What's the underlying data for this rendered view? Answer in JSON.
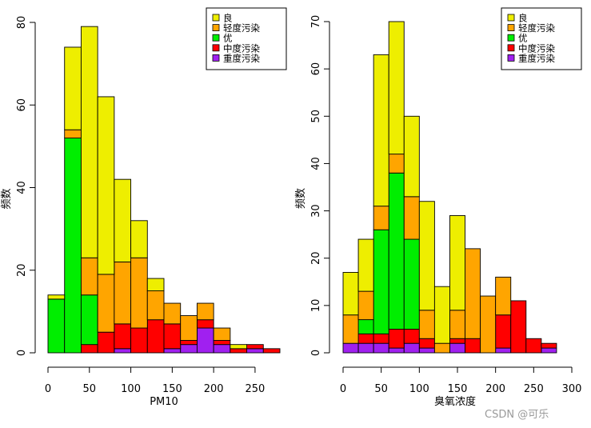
{
  "colors": {
    "良": "#EEEE00",
    "轻度污染": "#FFA500",
    "优": "#00EE00",
    "中度污染": "#FF0000",
    "重度污染": "#A020F0"
  },
  "watermark": "CSDN @可乐",
  "chart_data": [
    {
      "type": "bar",
      "stacked": true,
      "histogram": true,
      "xlabel": "PM10",
      "ylabel": "频数",
      "xlim": [
        0,
        280
      ],
      "ylim": [
        0,
        80
      ],
      "xticks": [
        0,
        50,
        100,
        150,
        200,
        250
      ],
      "yticks": [
        0,
        20,
        40,
        60,
        80
      ],
      "bin_width": 20,
      "bins": [
        0,
        20,
        40,
        60,
        80,
        100,
        120,
        140,
        160,
        180,
        200,
        220,
        240,
        260
      ],
      "series": [
        {
          "name": "重度污染",
          "values": [
            0,
            0,
            0,
            0,
            1,
            0,
            0,
            1,
            2,
            6,
            2,
            0,
            1,
            0
          ]
        },
        {
          "name": "中度污染",
          "values": [
            0,
            0,
            2,
            5,
            6,
            6,
            8,
            6,
            1,
            2,
            1,
            1,
            1,
            1
          ]
        },
        {
          "name": "优",
          "values": [
            13,
            52,
            12,
            0,
            0,
            0,
            0,
            0,
            0,
            0,
            0,
            0,
            0,
            0
          ]
        },
        {
          "name": "轻度污染",
          "values": [
            0,
            2,
            9,
            14,
            15,
            17,
            7,
            5,
            6,
            4,
            3,
            0,
            0,
            0
          ]
        },
        {
          "name": "良",
          "values": [
            1,
            20,
            56,
            43,
            20,
            9,
            3,
            0,
            0,
            0,
            0,
            1,
            0,
            0
          ]
        }
      ],
      "legend": [
        "良",
        "轻度污染",
        "优",
        "中度污染",
        "重度污染"
      ],
      "legend_position": "top-right"
    },
    {
      "type": "bar",
      "stacked": true,
      "histogram": true,
      "xlabel": "臭氧浓度",
      "ylabel": "频数",
      "xlim": [
        0,
        300
      ],
      "ylim": [
        0,
        70
      ],
      "xticks": [
        0,
        50,
        100,
        150,
        200,
        250,
        300
      ],
      "yticks": [
        0,
        10,
        20,
        30,
        40,
        50,
        60,
        70
      ],
      "bin_width": 20,
      "bins": [
        0,
        20,
        40,
        60,
        80,
        100,
        120,
        140,
        160,
        180,
        200,
        220,
        240,
        260
      ],
      "series": [
        {
          "name": "重度污染",
          "values": [
            2,
            2,
            2,
            1,
            2,
            1,
            0,
            2,
            0,
            0,
            1,
            0,
            0,
            1
          ]
        },
        {
          "name": "中度污染",
          "values": [
            0,
            2,
            2,
            4,
            3,
            2,
            0,
            1,
            3,
            0,
            7,
            11,
            3,
            1
          ]
        },
        {
          "name": "优",
          "values": [
            0,
            3,
            22,
            33,
            19,
            0,
            0,
            0,
            0,
            0,
            0,
            0,
            0,
            0
          ]
        },
        {
          "name": "轻度污染",
          "values": [
            6,
            6,
            5,
            4,
            9,
            6,
            2,
            6,
            19,
            12,
            8,
            0,
            0,
            0
          ]
        },
        {
          "name": "良",
          "values": [
            9,
            11,
            32,
            28,
            17,
            23,
            12,
            20,
            0,
            0,
            0,
            0,
            0,
            0
          ]
        }
      ],
      "legend": [
        "良",
        "轻度污染",
        "优",
        "中度污染",
        "重度污染"
      ],
      "legend_position": "top-right"
    }
  ]
}
